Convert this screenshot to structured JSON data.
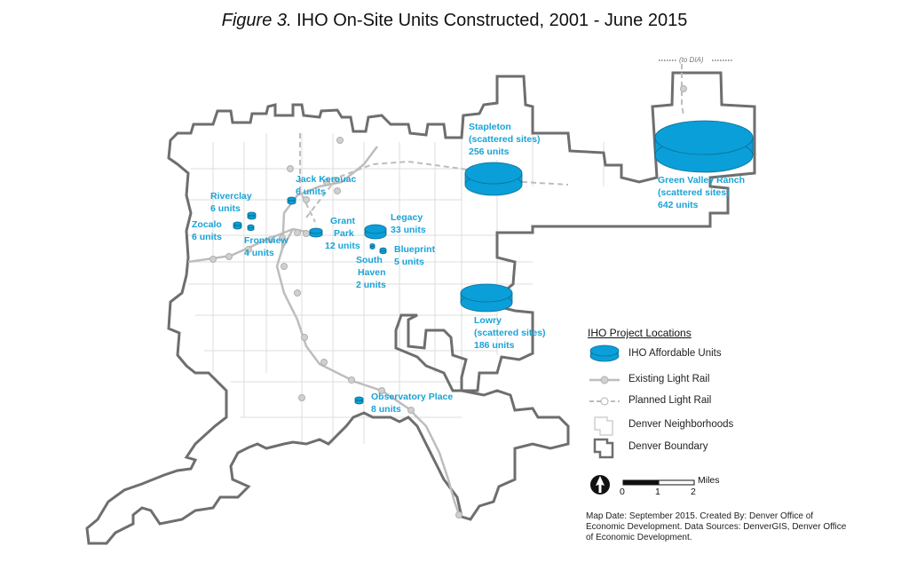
{
  "title": {
    "figure": "Figure 3.",
    "rest": "IHO On-Site Units Constructed, 2001 - June 2015"
  },
  "colors": {
    "units": "#0a9fd8",
    "rail": "#bdbdbd",
    "boundary": "#6e6e6e",
    "neighborhood": "#dcdcdc",
    "label": "#1aa3d6"
  },
  "projects": [
    {
      "name": "Stapleton",
      "sub": "(scattered sites)",
      "units": "256 units"
    },
    {
      "name": "Green Valley Ranch",
      "sub": "(scattered sites)",
      "units": "642 units"
    },
    {
      "name": "Lowry",
      "sub": "(scattered sites)",
      "units": "186 units"
    },
    {
      "name": "Jack Kerouac",
      "units": "6 units"
    },
    {
      "name": "Riverclay",
      "units": "6 units"
    },
    {
      "name": "Zocalo",
      "units": "6 units"
    },
    {
      "name": "Frontview",
      "units": "4 units"
    },
    {
      "name": "Grant",
      "sub": "Park",
      "units": "12 units"
    },
    {
      "name": "Legacy",
      "units": "33 units"
    },
    {
      "name": "Blueprint",
      "units": "5 units"
    },
    {
      "name": "South",
      "sub": "Haven",
      "units": "2 units"
    },
    {
      "name": "Observatory Place",
      "units": "8 units"
    }
  ],
  "dia_label": "(to DIA)",
  "legend": {
    "title": "IHO Project Locations",
    "items": [
      "IHO Affordable Units",
      "Existing Light Rail",
      "Planned Light Rail",
      "Denver Neighborhoods",
      "Denver Boundary"
    ]
  },
  "scale": {
    "ticks": [
      "0",
      "1",
      "2"
    ],
    "unit": "Miles"
  },
  "credit": "Map Date: September 2015. Created By: Denver Office of Economic Development. Data Sources: DenverGIS, Denver Office of Economic Development."
}
